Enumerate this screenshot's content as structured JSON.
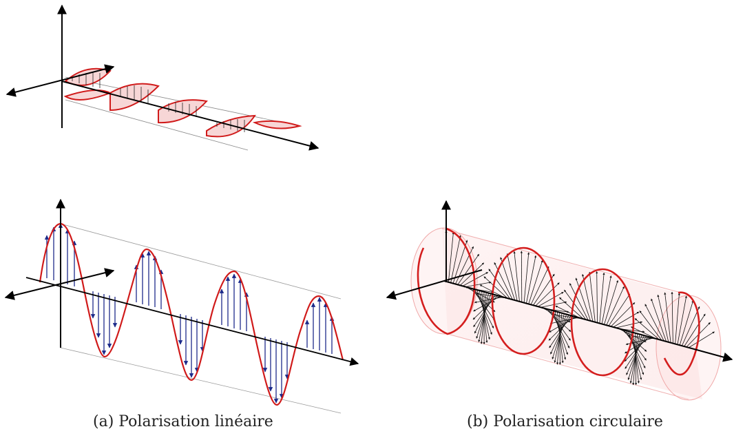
{
  "captions": {
    "a": "(a) Polarisation linéaire",
    "b": "(b) Polarisation circulaire"
  },
  "colors": {
    "axis": "#000000",
    "wave": "#d01a1a",
    "vector_linear": "#1c2a8a",
    "vector_circular": "#111111",
    "cylinder": "#f4b8b8"
  }
}
